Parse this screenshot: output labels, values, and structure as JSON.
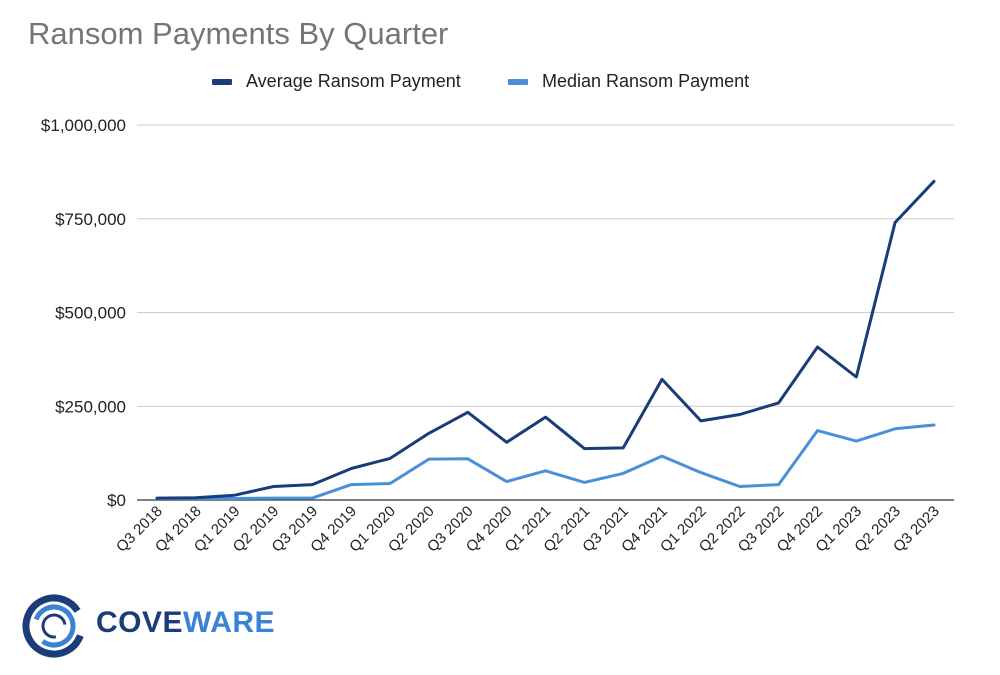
{
  "chart_data": {
    "type": "line",
    "title": "Ransom Payments By Quarter",
    "xlabel": "",
    "ylabel": "",
    "ylim": [
      0,
      1000000
    ],
    "yticks": [
      0,
      250000,
      500000,
      750000,
      1000000
    ],
    "ytick_labels": [
      "$0",
      "$250,000",
      "$500,000",
      "$750,000",
      "$1,000,000"
    ],
    "grid": true,
    "legend_position": "top-center",
    "categories": [
      "Q3 2018",
      "Q4 2018",
      "Q1 2019",
      "Q2 2019",
      "Q3 2019",
      "Q4 2019",
      "Q1 2020",
      "Q2 2020",
      "Q3 2020",
      "Q4 2020",
      "Q1 2021",
      "Q2 2021",
      "Q3 2021",
      "Q4 2021",
      "Q1 2022",
      "Q2 2022",
      "Q3 2022",
      "Q4 2022",
      "Q1 2023",
      "Q2 2023",
      "Q3 2023"
    ],
    "series": [
      {
        "name": "Average Ransom Payment",
        "color": "#1a3c78",
        "values": [
          5000,
          6000,
          12800,
          36000,
          41000,
          84000,
          111000,
          178000,
          234000,
          154000,
          221000,
          137000,
          139000,
          322000,
          211000,
          228000,
          259000,
          408000,
          328000,
          740000,
          850000
        ]
      },
      {
        "name": "Median Ransom Payment",
        "color": "#4a90d9",
        "values": [
          4000,
          4000,
          4000,
          5000,
          5000,
          41000,
          44000,
          109000,
          110000,
          49000,
          78000,
          47000,
          71000,
          117000,
          73000,
          36000,
          41000,
          185000,
          157000,
          190000,
          200000
        ]
      }
    ]
  },
  "logo": {
    "text_cove": "COVE",
    "text_ware": "WARE",
    "color_dark": "#1a3c78",
    "color_light": "#3a82d4"
  }
}
